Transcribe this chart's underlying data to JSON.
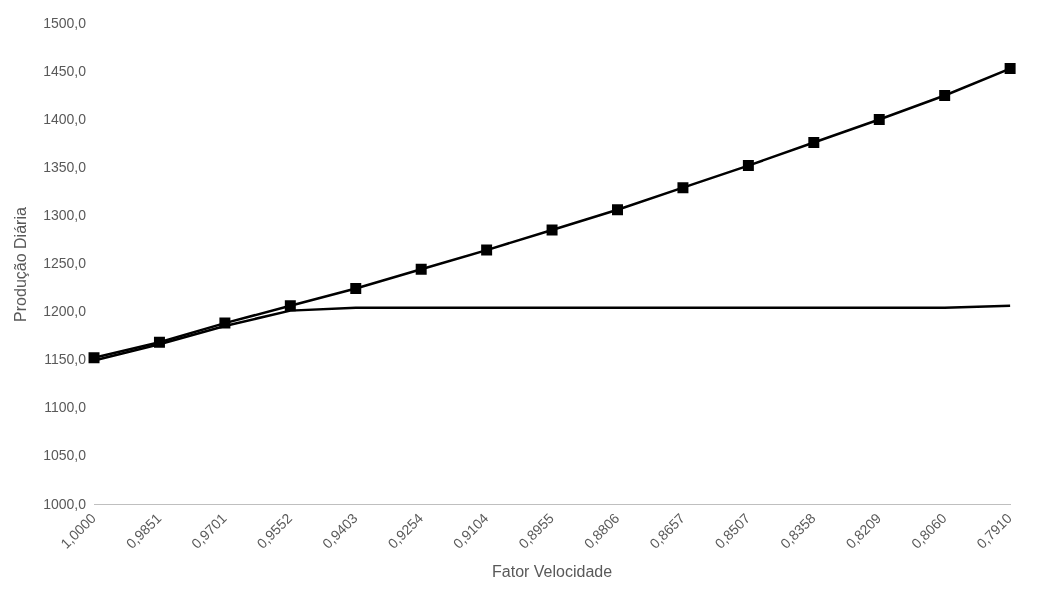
{
  "chart_data": {
    "type": "line",
    "xlabel": "Fator Velocidade",
    "ylabel": "Produção Diária",
    "categories": [
      "1,0000",
      "0,9851",
      "0,9701",
      "0,9552",
      "0,9403",
      "0,9254",
      "0,9104",
      "0,8955",
      "0,8806",
      "0,8657",
      "0,8507",
      "0,8358",
      "0,8209",
      "0,8060",
      "0,7910"
    ],
    "series": [
      {
        "color": "#000000",
        "marker": "square",
        "values": [
          1153,
          1169,
          1189,
          1207,
          1225,
          1245,
          1265,
          1286,
          1307,
          1330,
          1353,
          1377,
          1401,
          1426,
          1454
        ]
      },
      {
        "color": "#000000",
        "marker": "none",
        "values": [
          1150,
          1167,
          1186,
          1202,
          1205,
          1205,
          1205,
          1205,
          1205,
          1205,
          1205,
          1205,
          1205,
          1205,
          1207
        ]
      }
    ],
    "ylim": [
      1000,
      1500
    ],
    "yticks": [
      {
        "value": 1000,
        "label": "1000,0"
      },
      {
        "value": 1050,
        "label": "1050,0"
      },
      {
        "value": 1100,
        "label": "1100,0"
      },
      {
        "value": 1150,
        "label": "1150,0"
      },
      {
        "value": 1200,
        "label": "1200,0"
      },
      {
        "value": 1250,
        "label": "1250,0"
      },
      {
        "value": 1300,
        "label": "1300,0"
      },
      {
        "value": 1350,
        "label": "1350,0"
      },
      {
        "value": 1400,
        "label": "1400,0"
      },
      {
        "value": 1450,
        "label": "1450,0"
      },
      {
        "value": 1500,
        "label": "1500,0"
      }
    ],
    "grid": false,
    "legend": false
  }
}
